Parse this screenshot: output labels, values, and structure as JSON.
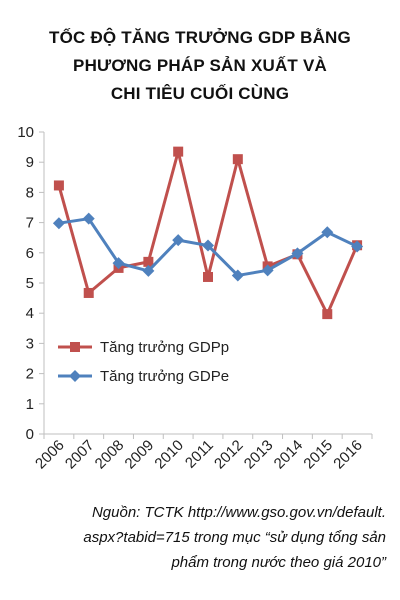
{
  "title_lines": [
    "TỐC ĐỘ TĂNG TRƯỞNG GDP BẰNG",
    "PHƯƠNG PHÁP SẢN XUẤT VÀ",
    "CHI TIÊU CUỐI CÙNG"
  ],
  "source_lines": [
    "Nguồn: TCTK http://www.gso.gov.vn/default.",
    "aspx?tabid=715 trong mục “sử dụng tổng sản",
    "phẩm trong nước theo giá 2010”"
  ],
  "chart_data": {
    "type": "line",
    "title": "TỐC ĐỘ TĂNG TRƯỞNG GDP BẰNG PHƯƠNG PHÁP SẢN XUẤT VÀ CHI TIÊU CUỐI CÙNG",
    "x": [
      "2006",
      "2007",
      "2008",
      "2009",
      "2010",
      "2011",
      "2012",
      "2013",
      "2014",
      "2015",
      "2016"
    ],
    "series": [
      {
        "name": "Tăng trưởng GDPp",
        "color": "#c0504d",
        "marker": "square",
        "values": [
          8.23,
          4.67,
          5.5,
          5.7,
          9.35,
          5.2,
          9.1,
          5.55,
          5.95,
          3.97,
          6.25
        ]
      },
      {
        "name": "Tăng trưởng GDPe",
        "color": "#4f81bd",
        "marker": "diamond",
        "values": [
          6.98,
          7.13,
          5.66,
          5.4,
          6.42,
          6.24,
          5.25,
          5.42,
          5.98,
          6.68,
          6.21
        ]
      }
    ],
    "xlabel": "",
    "ylabel": "",
    "ylim": [
      0,
      10
    ],
    "yticks": [
      0,
      1,
      2,
      3,
      4,
      5,
      6,
      7,
      8,
      9,
      10
    ],
    "grid": false,
    "legend": "bottom-left"
  }
}
